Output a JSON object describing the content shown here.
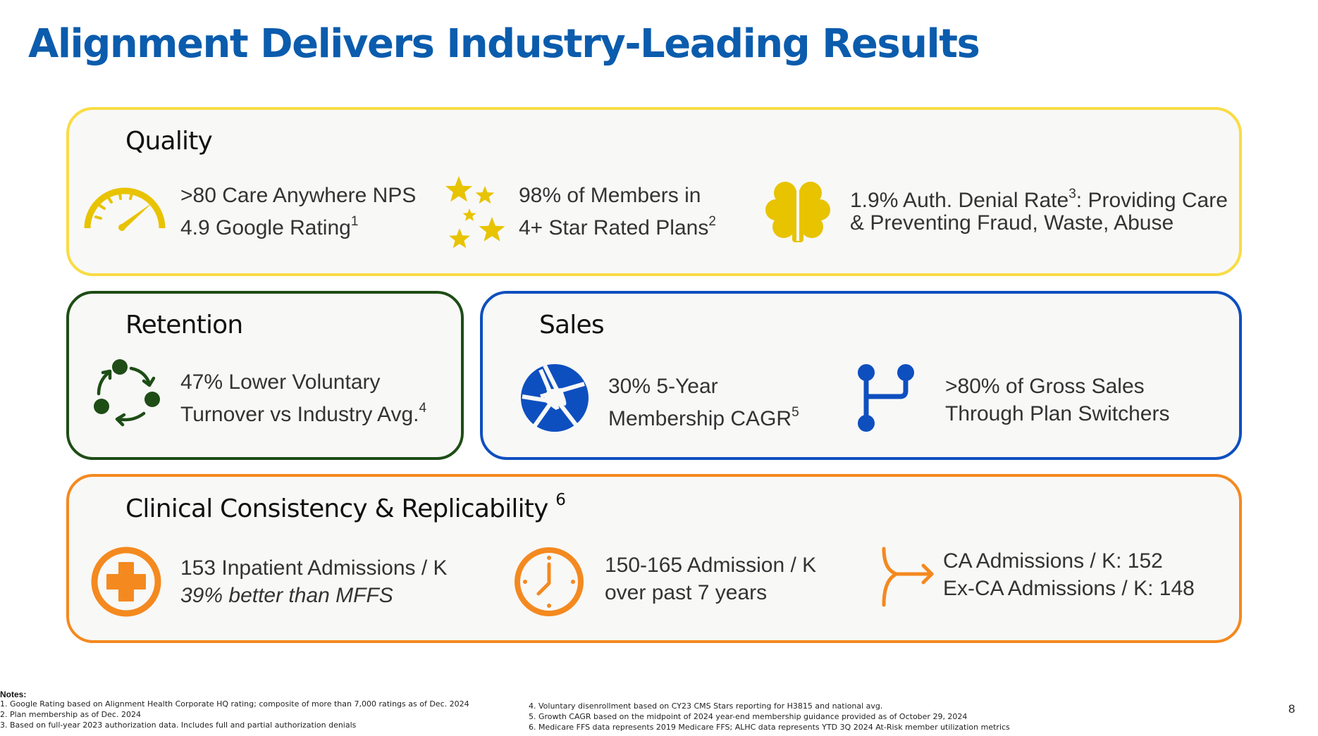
{
  "title": "Alignment Delivers Industry-Leading Results",
  "quality": {
    "heading": "Quality",
    "stats": [
      {
        "line1": ">80 Care Anywhere NPS",
        "line2": "4.9 Google Rating",
        "sup2": "1",
        "icon": "speedometer-icon"
      },
      {
        "line1": "98% of Members in",
        "line2": "4+ Star Rated Plans",
        "sup2": "2",
        "icon": "stars-icon"
      },
      {
        "line1a": "1.9% Auth. Denial Rate",
        "sup1": "3",
        "line1b": ": Providing Care",
        "line2": "& Preventing Fraud, Waste, Abuse",
        "icon": "brain-icon"
      }
    ]
  },
  "retention": {
    "heading": "Retention",
    "stat": {
      "line1": "47% Lower Voluntary",
      "line2": "Turnover vs Industry Avg.",
      "sup2": "4",
      "icon": "cycle-arrows-icon"
    }
  },
  "sales": {
    "heading": "Sales",
    "stats": [
      {
        "line1": "30% 5-Year",
        "line2": "Membership CAGR",
        "sup2": "5",
        "icon": "aperture-icon"
      },
      {
        "line1": ">80% of Gross Sales",
        "line2": "Through Plan Switchers",
        "icon": "branch-icon"
      }
    ]
  },
  "clinical": {
    "heading": "Clinical Consistency & Replicability",
    "heading_sup": "6",
    "stats": [
      {
        "line1": "153 Inpatient Admissions / K",
        "line2": "39% better than MFFS",
        "icon": "medical-cross-icon"
      },
      {
        "line1": "150-165 Admission / K",
        "line2": "over past 7 years",
        "icon": "clock-icon"
      },
      {
        "line1": "CA Admissions / K: 152",
        "line2": "Ex-CA Admissions / K: 148",
        "icon": "merge-arrow-icon"
      }
    ]
  },
  "notes": {
    "heading": "Notes:",
    "left": [
      "1.  Google Rating based on Alignment Health Corporate HQ rating; composite of more than 7,000 ratings as of Dec. 2024",
      "2.  Plan membership as of Dec. 2024",
      "3.  Based on full-year 2023 authorization data. Includes full and partial authorization denials"
    ],
    "right": [
      "4. Voluntary disenrollment based on CY23 CMS Stars reporting for H3815 and national avg.",
      "5. Growth CAGR based on the midpoint of 2024 year-end membership guidance provided as of October 29, 2024",
      "6. Medicare FFS data represents 2019 Medicare FFS; ALHC data represents YTD 3Q 2024 At-Risk member utilization metrics"
    ]
  },
  "page_number": "8",
  "colors": {
    "title": "#0b5cad",
    "quality": "#f9dc45",
    "quality_icon": "#e8c300",
    "retention": "#1e4d16",
    "sales": "#0e4fbf",
    "clinical": "#f4891f"
  }
}
